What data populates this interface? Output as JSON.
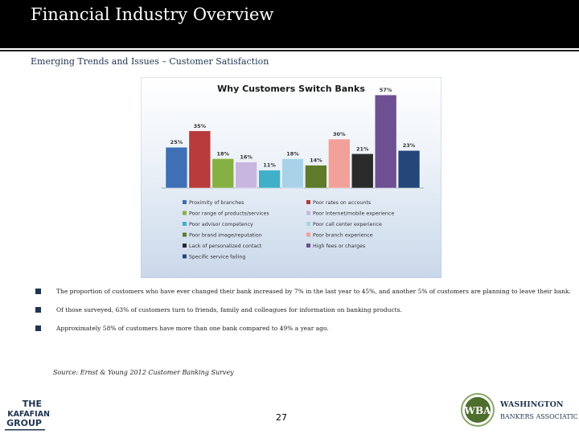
{
  "header": {
    "title": "Financial Industry Overview"
  },
  "subtitle": "Emerging Trends and Issues – Customer Satisfaction",
  "colors": {
    "top_bar": "#000000",
    "navy": "#1f3550",
    "wba_green": "#4e6e2e"
  },
  "chart_data": {
    "type": "bar",
    "title": "Why Customers Switch Banks",
    "categories": [
      "Proximity of branches",
      "Poor rates on accounts",
      "Poor range of products/services",
      "Poor Internet/mobile experience",
      "Poor advisor competency",
      "Poor call center experience",
      "Poor brand image/reputation",
      "Poor branch experience",
      "Lack of personalized contact",
      "High fees or charges",
      "Specific service failing"
    ],
    "values": [
      25,
      35,
      18,
      16,
      11,
      18,
      14,
      30,
      21,
      57,
      23
    ],
    "data_labels": [
      "25%",
      "35%",
      "18%",
      "16%",
      "11%",
      "18%",
      "14%",
      "30%",
      "21%",
      "57%",
      "23%"
    ],
    "colors": [
      "#3f6fb5",
      "#b83a3a",
      "#86b043",
      "#c8b6e0",
      "#3fb0c8",
      "#a8d2e8",
      "#5e7a2a",
      "#f2a09a",
      "#2a2a2a",
      "#6e4f91",
      "#23477a"
    ],
    "ylim": [
      0,
      60
    ],
    "grid": false,
    "legend_position": "bottom"
  },
  "bullets": [
    "The proportion of customers who have ever changed their bank increased by 7% in the last year to 45%, and another 5% of customers are planning to leave their bank.",
    "Of those surveyed, 63% of customers turn to friends, family and colleagues for information on banking products.",
    "Approximately 58% of customers have more than one bank compared to 49% a year ago."
  ],
  "source": "Source: Ernst & Young 2012 Customer Banking Survey",
  "page_number": "27",
  "logos": {
    "left_lines": [
      "THE",
      "KAFAFIAN",
      "GROUP"
    ],
    "right_badge": "WBA",
    "right_lines": [
      "WASHINGTON",
      "BANKERS ASSOCIATION"
    ]
  }
}
